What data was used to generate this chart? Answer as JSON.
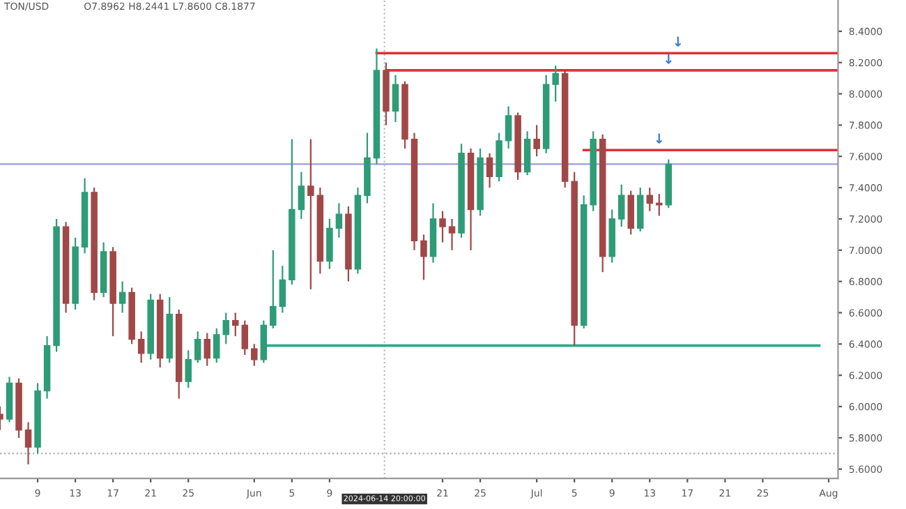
{
  "chart_data": {
    "type": "candlestick",
    "title": "TON/USD",
    "subtitle": "O7.8962 H8.2441 L7.8600 C8.1877",
    "x": [
      "2024-05-05",
      "2024-05-06",
      "2024-05-07",
      "2024-05-08",
      "2024-05-09",
      "2024-05-10",
      "2024-05-11",
      "2024-05-12",
      "2024-05-13",
      "2024-05-14",
      "2024-05-15",
      "2024-05-16",
      "2024-05-17",
      "2024-05-18",
      "2024-05-19",
      "2024-05-20",
      "2024-05-21",
      "2024-05-22",
      "2024-05-23",
      "2024-05-24",
      "2024-05-25",
      "2024-05-26",
      "2024-05-27",
      "2024-05-28",
      "2024-05-29",
      "2024-05-30",
      "2024-05-31",
      "2024-06-01",
      "2024-06-02",
      "2024-06-03",
      "2024-06-04",
      "2024-06-05",
      "2024-06-06",
      "2024-06-07",
      "2024-06-08",
      "2024-06-09",
      "2024-06-10",
      "2024-06-11",
      "2024-06-12",
      "2024-06-13",
      "2024-06-14",
      "2024-06-15",
      "2024-06-16",
      "2024-06-17",
      "2024-06-18",
      "2024-06-19",
      "2024-06-20",
      "2024-06-21",
      "2024-06-22",
      "2024-06-23",
      "2024-06-24",
      "2024-06-25",
      "2024-06-26",
      "2024-06-27",
      "2024-06-28",
      "2024-06-29",
      "2024-06-30",
      "2024-07-01",
      "2024-07-02",
      "2024-07-03",
      "2024-07-04",
      "2024-07-05",
      "2024-07-06",
      "2024-07-07",
      "2024-07-08",
      "2024-07-09",
      "2024-07-10",
      "2024-07-11",
      "2024-07-12",
      "2024-07-13",
      "2024-07-14",
      "2024-07-15"
    ],
    "ohlc": [
      [
        5.95,
        6.0,
        5.85,
        5.92
      ],
      [
        5.92,
        6.19,
        5.9,
        6.15
      ],
      [
        6.15,
        6.18,
        5.8,
        5.85
      ],
      [
        5.85,
        5.9,
        5.63,
        5.74
      ],
      [
        5.74,
        6.15,
        5.7,
        6.1
      ],
      [
        6.1,
        6.45,
        6.05,
        6.39
      ],
      [
        6.39,
        7.2,
        6.35,
        7.15
      ],
      [
        7.15,
        7.18,
        6.6,
        6.66
      ],
      [
        6.66,
        7.08,
        6.62,
        7.02
      ],
      [
        7.02,
        7.46,
        6.98,
        7.37
      ],
      [
        7.37,
        7.4,
        6.68,
        6.73
      ],
      [
        6.73,
        7.05,
        6.7,
        6.99
      ],
      [
        6.99,
        7.02,
        6.45,
        6.66
      ],
      [
        6.66,
        6.8,
        6.6,
        6.73
      ],
      [
        6.73,
        6.76,
        6.4,
        6.43
      ],
      [
        6.43,
        6.48,
        6.28,
        6.34
      ],
      [
        6.34,
        6.72,
        6.3,
        6.68
      ],
      [
        6.68,
        6.72,
        6.25,
        6.31
      ],
      [
        6.31,
        6.7,
        6.28,
        6.59
      ],
      [
        6.59,
        6.62,
        6.05,
        6.16
      ],
      [
        6.16,
        6.36,
        6.12,
        6.3
      ],
      [
        6.3,
        6.48,
        6.28,
        6.43
      ],
      [
        6.43,
        6.47,
        6.26,
        6.31
      ],
      [
        6.31,
        6.5,
        6.28,
        6.46
      ],
      [
        6.46,
        6.6,
        6.4,
        6.55
      ],
      [
        6.55,
        6.6,
        6.45,
        6.52
      ],
      [
        6.52,
        6.55,
        6.33,
        6.37
      ],
      [
        6.37,
        6.4,
        6.26,
        6.3
      ],
      [
        6.3,
        6.55,
        6.28,
        6.52
      ],
      [
        6.52,
        7.0,
        6.5,
        6.64
      ],
      [
        6.64,
        6.9,
        6.6,
        6.81
      ],
      [
        6.81,
        7.71,
        6.78,
        7.26
      ],
      [
        7.26,
        7.5,
        7.2,
        7.41
      ],
      [
        7.41,
        7.71,
        6.75,
        7.35
      ],
      [
        7.35,
        7.4,
        6.85,
        6.93
      ],
      [
        6.93,
        7.2,
        6.88,
        7.14
      ],
      [
        7.14,
        7.3,
        7.08,
        7.23
      ],
      [
        7.23,
        7.28,
        6.8,
        6.88
      ],
      [
        6.88,
        7.4,
        6.85,
        7.35
      ],
      [
        7.35,
        7.75,
        7.3,
        7.59
      ],
      [
        7.59,
        8.29,
        7.55,
        8.15
      ],
      [
        8.15,
        8.2,
        7.8,
        7.89
      ],
      [
        7.89,
        8.12,
        7.82,
        8.06
      ],
      [
        8.06,
        8.08,
        7.65,
        7.71
      ],
      [
        7.71,
        7.75,
        7.0,
        7.06
      ],
      [
        7.06,
        7.1,
        6.81,
        6.96
      ],
      [
        6.96,
        7.3,
        6.92,
        7.2
      ],
      [
        7.2,
        7.25,
        7.05,
        7.15
      ],
      [
        7.15,
        7.2,
        7.0,
        7.11
      ],
      [
        7.11,
        7.68,
        7.08,
        7.62
      ],
      [
        7.62,
        7.65,
        7.0,
        7.26
      ],
      [
        7.26,
        7.65,
        7.22,
        7.59
      ],
      [
        7.59,
        7.62,
        7.4,
        7.47
      ],
      [
        7.47,
        7.75,
        7.44,
        7.7
      ],
      [
        7.7,
        7.92,
        7.65,
        7.86
      ],
      [
        7.86,
        7.88,
        7.45,
        7.5
      ],
      [
        7.5,
        7.76,
        7.48,
        7.71
      ],
      [
        7.71,
        7.8,
        7.6,
        7.65
      ],
      [
        7.65,
        8.12,
        7.62,
        8.06
      ],
      [
        8.06,
        8.18,
        7.95,
        8.13
      ],
      [
        8.13,
        8.15,
        7.4,
        7.44
      ],
      [
        7.44,
        7.5,
        6.39,
        6.52
      ],
      [
        6.52,
        7.35,
        6.5,
        7.29
      ],
      [
        7.29,
        7.76,
        7.25,
        7.71
      ],
      [
        7.71,
        7.74,
        6.86,
        6.96
      ],
      [
        6.96,
        7.26,
        6.92,
        7.2
      ],
      [
        7.2,
        7.42,
        7.15,
        7.35
      ],
      [
        7.35,
        7.38,
        7.1,
        7.14
      ],
      [
        7.14,
        7.4,
        7.12,
        7.35
      ],
      [
        7.35,
        7.4,
        7.25,
        7.3
      ],
      [
        7.3,
        7.36,
        7.22,
        7.29
      ],
      [
        7.29,
        7.58,
        7.27,
        7.55
      ]
    ],
    "series": [
      {
        "type": "line",
        "color": "#e0303a",
        "x": [
          "2024-06-14",
          "2024-08-02"
        ],
        "values": [
          8.26,
          8.26
        ]
      },
      {
        "type": "line",
        "color": "#e0303a",
        "x": [
          "2024-06-15",
          "2024-08-02"
        ],
        "values": [
          8.15,
          8.15
        ]
      },
      {
        "type": "line",
        "color": "#e0303a",
        "x": [
          "2024-07-06",
          "2024-08-02"
        ],
        "values": [
          7.64,
          7.64
        ]
      },
      {
        "type": "line",
        "color": "#2bab87",
        "x": [
          "2024-06-02",
          "2024-07-31"
        ],
        "values": [
          6.39,
          6.39
        ]
      }
    ],
    "ref_lines": [
      {
        "axis": "y",
        "value": 7.55,
        "color": "#9a9ee0",
        "line_style": "solid"
      },
      {
        "axis": "y",
        "value": 5.7,
        "color": "#aaaaaa",
        "line_style": "dotted"
      },
      {
        "axis": "x",
        "value": "2024-06-14T20:00",
        "label": "2024-06-14 20:00:00",
        "color": "#bbbbbb",
        "line_style": "dotted"
      }
    ],
    "annotations": [
      {
        "text": "↓",
        "x": "2024-07-16",
        "y": 8.26
      },
      {
        "text": "↓",
        "x": "2024-07-15",
        "y": 8.15
      },
      {
        "text": "↓",
        "x": "2024-07-14",
        "y": 7.64
      }
    ],
    "xlim": [
      "2024-05-05",
      "2024-08-02"
    ],
    "xticks": [
      {
        "value": "2024-05-09",
        "label": "9"
      },
      {
        "value": "2024-05-13",
        "label": "13"
      },
      {
        "value": "2024-05-17",
        "label": "17"
      },
      {
        "value": "2024-05-21",
        "label": "21"
      },
      {
        "value": "2024-05-25",
        "label": "25"
      },
      {
        "value": "2024-06-01",
        "label": "Jun"
      },
      {
        "value": "2024-06-05",
        "label": "5"
      },
      {
        "value": "2024-06-09",
        "label": "9"
      },
      {
        "value": "2024-06-21",
        "label": "21"
      },
      {
        "value": "2024-06-25",
        "label": "25"
      },
      {
        "value": "2024-07-01",
        "label": "Jul"
      },
      {
        "value": "2024-07-05",
        "label": "5"
      },
      {
        "value": "2024-07-09",
        "label": "9"
      },
      {
        "value": "2024-07-13",
        "label": "13"
      },
      {
        "value": "2024-07-17",
        "label": "17"
      },
      {
        "value": "2024-07-21",
        "label": "21"
      },
      {
        "value": "2024-07-25",
        "label": "25"
      },
      {
        "value": "2024-08-01",
        "label": "Aug"
      }
    ],
    "ylim": [
      5.54,
      8.6
    ],
    "yticks": [
      {
        "value": 5.6,
        "label": "5.6000"
      },
      {
        "value": 5.8,
        "label": "5.8000"
      },
      {
        "value": 6.0,
        "label": "6.0000"
      },
      {
        "value": 6.2,
        "label": "6.2000"
      },
      {
        "value": 6.4,
        "label": "6.4000"
      },
      {
        "value": 6.6,
        "label": "6.6000"
      },
      {
        "value": 6.8,
        "label": "6.8000"
      },
      {
        "value": 7.0,
        "label": "7.0000"
      },
      {
        "value": 7.2,
        "label": "7.2000"
      },
      {
        "value": 7.4,
        "label": "7.4000"
      },
      {
        "value": 7.6,
        "label": "7.6000"
      },
      {
        "value": 7.8,
        "label": "7.8000"
      },
      {
        "value": 8.0,
        "label": "8.0000"
      },
      {
        "value": 8.2,
        "label": "8.2000"
      },
      {
        "value": 8.4,
        "label": "8.4000"
      }
    ],
    "grid": false,
    "legend": false
  }
}
